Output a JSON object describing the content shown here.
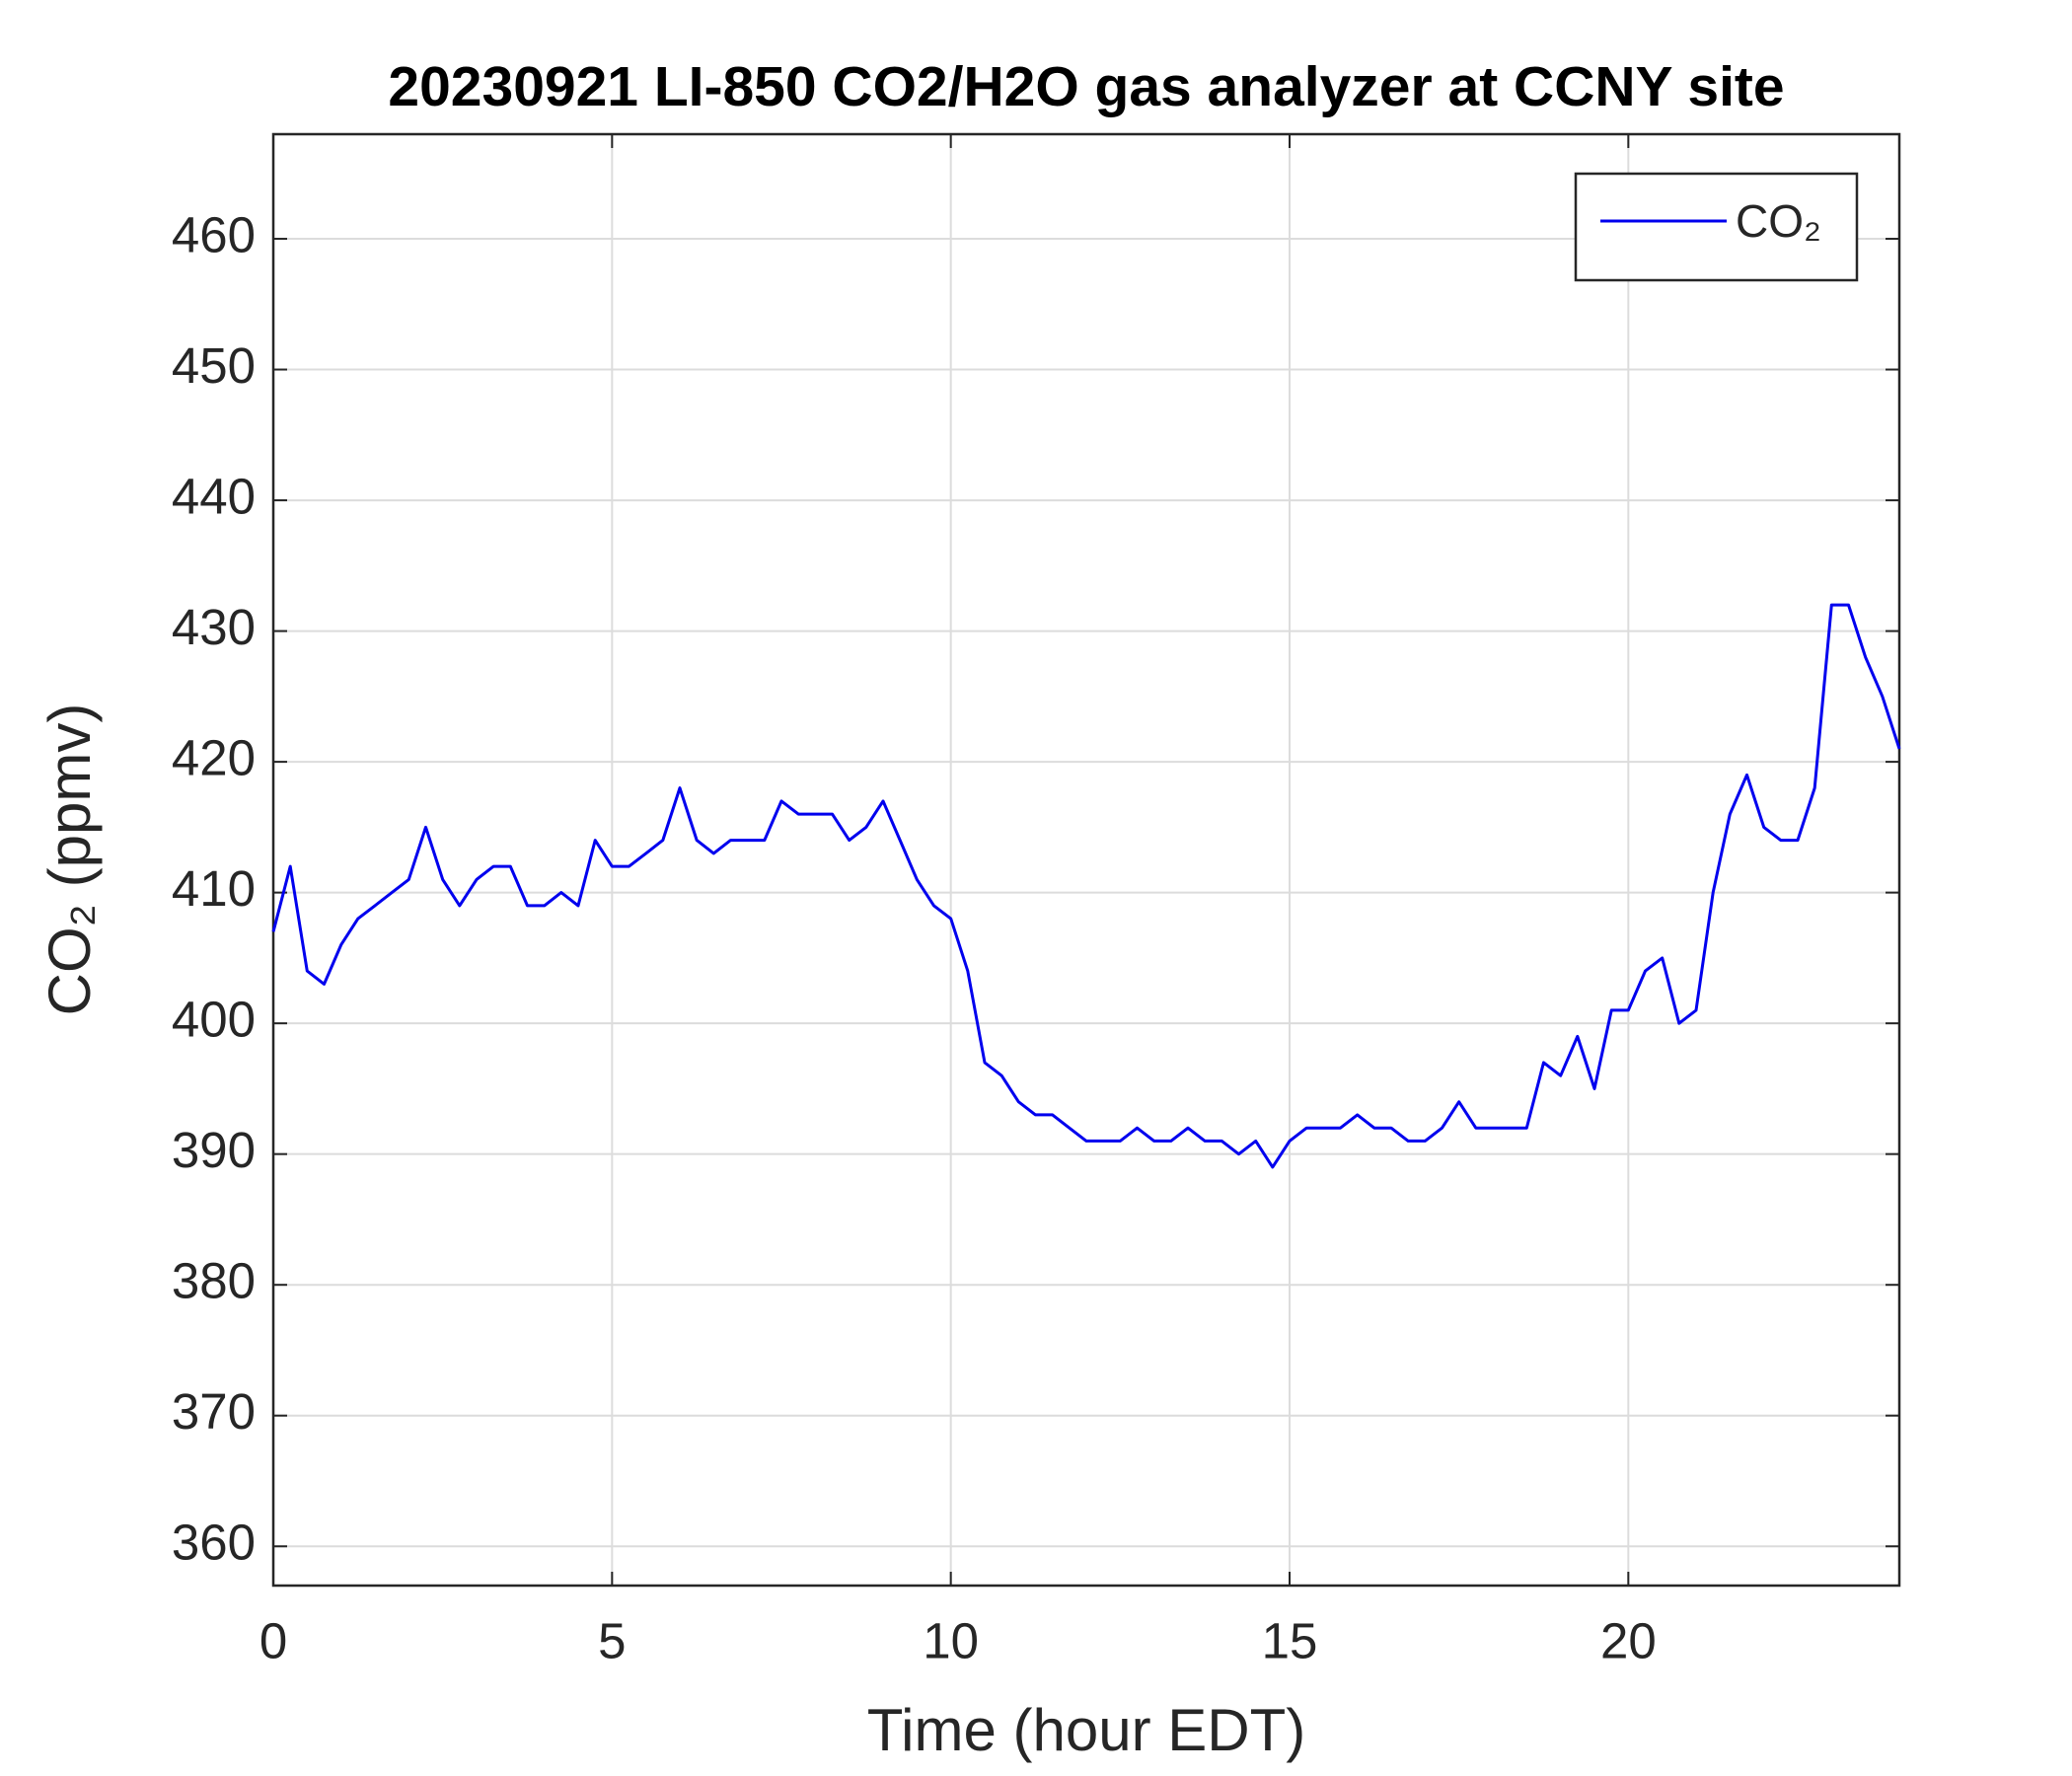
{
  "chart_data": {
    "type": "line",
    "title": "20230921 LI-850 CO2/H2O gas analyzer at CCNY site",
    "xlabel": "Time (hour EDT)",
    "ylabel": "CO₂ (ppmv)",
    "xlim": [
      0,
      24
    ],
    "xticks": [
      0,
      5,
      10,
      15,
      20
    ],
    "ylim": [
      357,
      468
    ],
    "yticks": [
      360,
      370,
      380,
      390,
      400,
      410,
      420,
      430,
      440,
      450,
      460
    ],
    "grid": true,
    "legend": "upper right",
    "x": [
      0,
      0.25,
      0.5,
      0.75,
      1,
      1.25,
      1.5,
      1.75,
      2,
      2.25,
      2.5,
      2.75,
      3,
      3.25,
      3.5,
      3.75,
      4,
      4.25,
      4.5,
      4.75,
      5,
      5.25,
      5.5,
      5.75,
      6,
      6.25,
      6.5,
      6.75,
      7,
      7.25,
      7.5,
      7.75,
      8,
      8.25,
      8.5,
      8.75,
      9,
      9.25,
      9.5,
      9.75,
      10,
      10.25,
      10.5,
      10.75,
      11,
      11.25,
      11.5,
      11.75,
      12,
      12.25,
      12.5,
      12.75,
      13,
      13.25,
      13.5,
      13.75,
      14,
      14.25,
      14.5,
      14.75,
      15,
      15.25,
      15.5,
      15.75,
      16,
      16.25,
      16.5,
      16.75,
      17,
      17.25,
      17.5,
      17.75,
      18,
      18.25,
      18.5,
      18.75,
      19,
      19.25,
      19.5,
      19.75,
      20,
      20.25,
      20.5,
      20.75,
      21,
      21.25,
      21.5,
      21.75,
      22,
      22.25,
      22.5,
      22.75,
      23,
      23.25,
      23.5,
      23.75,
      24
    ],
    "series": [
      {
        "name": "CO₂",
        "color": "#0000ee",
        "values": [
          407,
          412,
          404,
          403,
          406,
          408,
          409,
          410,
          411,
          415,
          411,
          409,
          411,
          412,
          412,
          409,
          409,
          410,
          409,
          414,
          412,
          412,
          413,
          414,
          418,
          414,
          413,
          414,
          414,
          414,
          417,
          416,
          416,
          416,
          414,
          415,
          417,
          414,
          411,
          409,
          408,
          404,
          397,
          396,
          394,
          393,
          393,
          392,
          391,
          391,
          391,
          392,
          391,
          391,
          392,
          391,
          391,
          390,
          391,
          389,
          391,
          392,
          392,
          392,
          393,
          392,
          392,
          391,
          391,
          392,
          394,
          392,
          392,
          392,
          392,
          397,
          396,
          399,
          395,
          401,
          401,
          404,
          405,
          400,
          401,
          410,
          416,
          419,
          415,
          414,
          414,
          418,
          432,
          432,
          428,
          425,
          421
        ]
      }
    ]
  }
}
